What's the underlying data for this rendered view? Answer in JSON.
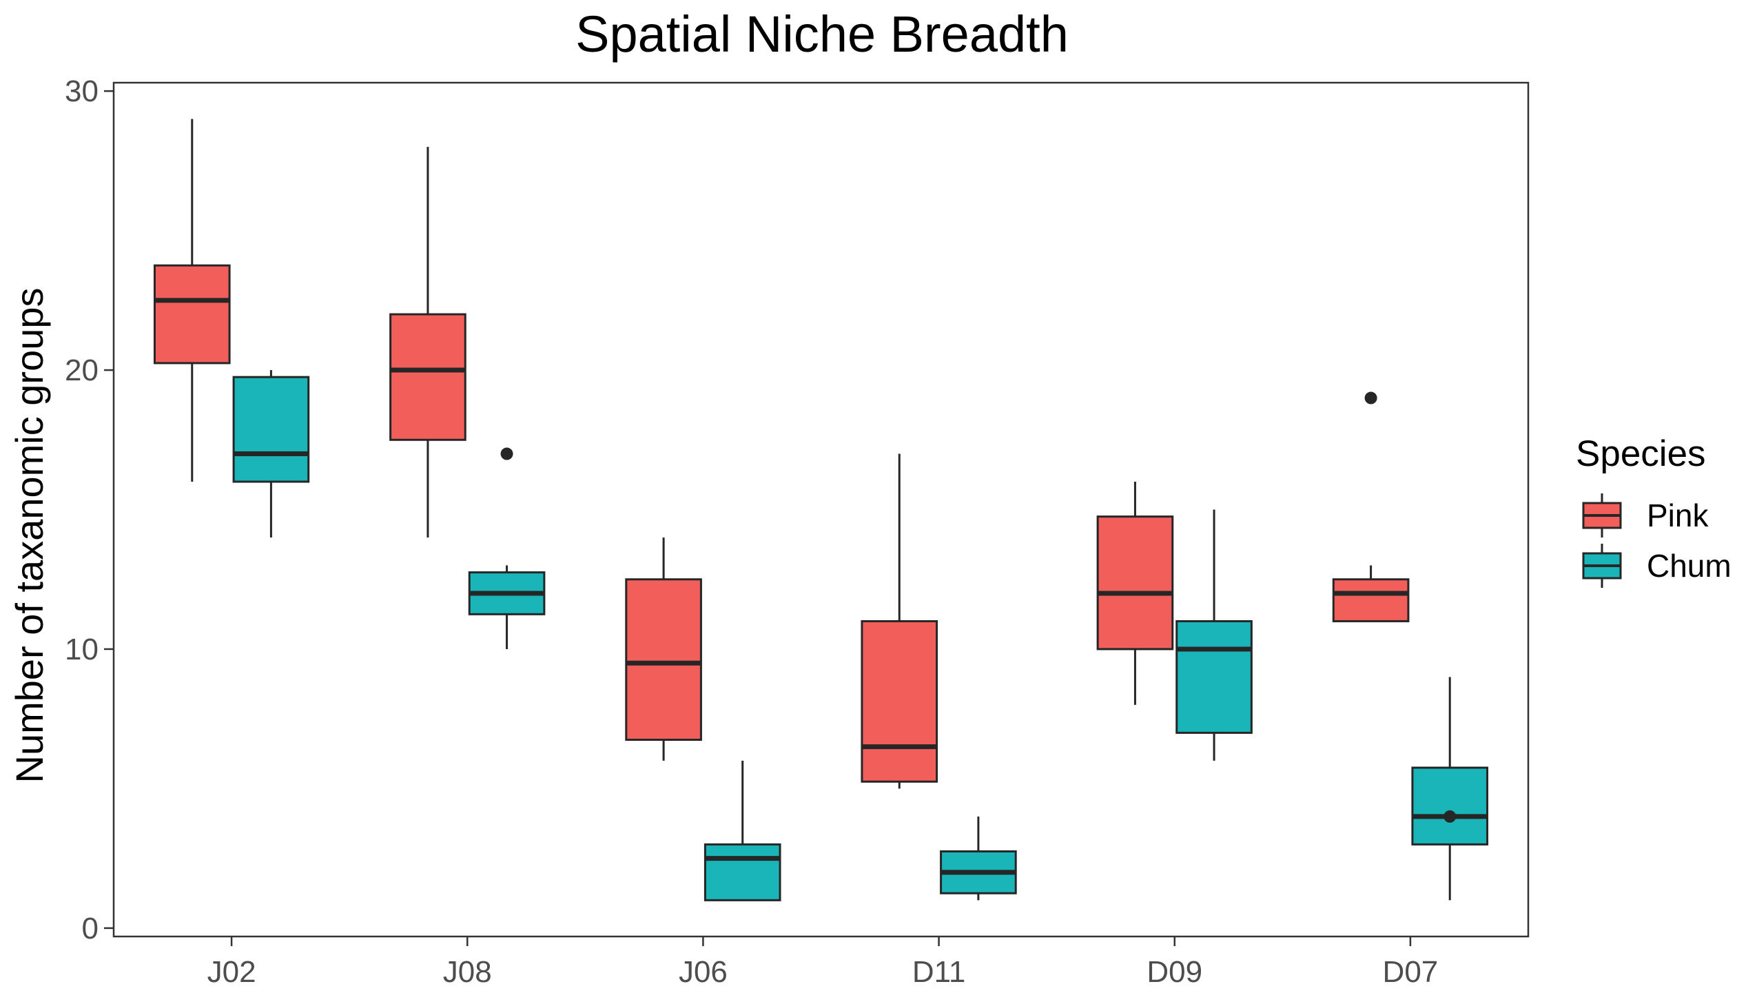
{
  "chart_data": {
    "type": "boxplot",
    "title": "Spatial Niche Breadth",
    "xlabel": "",
    "ylabel": "Number of taxanomic groups",
    "ylim": [
      -0.3,
      30.3
    ],
    "yticks": [
      0,
      10,
      20,
      30
    ],
    "grid": false,
    "categories": [
      "J02",
      "J08",
      "J06",
      "D11",
      "D09",
      "D07"
    ],
    "legend": {
      "title": "Species",
      "position": "right"
    },
    "series": [
      {
        "name": "Pink",
        "color": "#F25E5A",
        "boxes": [
          {
            "whisker_low": 16,
            "q1": 20.25,
            "median": 22.5,
            "q3": 23.75,
            "whisker_high": 29,
            "outliers": []
          },
          {
            "whisker_low": 14,
            "q1": 17.5,
            "median": 20,
            "q3": 22,
            "whisker_high": 28,
            "outliers": []
          },
          {
            "whisker_low": 6,
            "q1": 6.75,
            "median": 9.5,
            "q3": 12.5,
            "whisker_high": 14,
            "outliers": []
          },
          {
            "whisker_low": 5,
            "q1": 5.25,
            "median": 6.5,
            "q3": 11,
            "whisker_high": 17,
            "outliers": []
          },
          {
            "whisker_low": 8,
            "q1": 10,
            "median": 12,
            "q3": 14.75,
            "whisker_high": 16,
            "outliers": []
          },
          {
            "whisker_low": 11,
            "q1": 11,
            "median": 12,
            "q3": 12.5,
            "whisker_high": 13,
            "outliers": [
              19
            ]
          }
        ]
      },
      {
        "name": "Chum",
        "color": "#19B5B8",
        "boxes": [
          {
            "whisker_low": 14,
            "q1": 16,
            "median": 17,
            "q3": 19.75,
            "whisker_high": 20,
            "outliers": []
          },
          {
            "whisker_low": 10,
            "q1": 11.25,
            "median": 12,
            "q3": 12.75,
            "whisker_high": 13,
            "outliers": [
              17
            ]
          },
          {
            "whisker_low": 1,
            "q1": 1,
            "median": 2.5,
            "q3": 3,
            "whisker_high": 6,
            "outliers": []
          },
          {
            "whisker_low": 1,
            "q1": 1.25,
            "median": 2,
            "q3": 2.75,
            "whisker_high": 4,
            "outliers": []
          },
          {
            "whisker_low": 6,
            "q1": 7,
            "median": 10,
            "q3": 11,
            "whisker_high": 15,
            "outliers": []
          },
          {
            "whisker_low": 1,
            "q1": 3,
            "median": 4,
            "q3": 5.75,
            "whisker_high": 9,
            "outliers": [
              4
            ]
          }
        ]
      }
    ]
  }
}
